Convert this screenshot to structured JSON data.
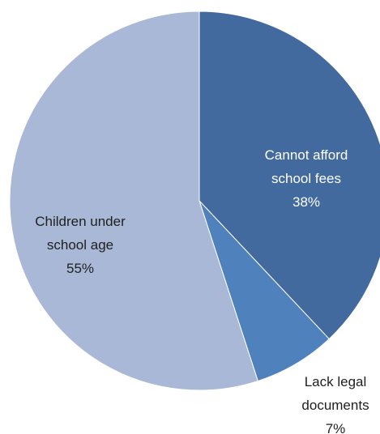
{
  "chart_data": {
    "type": "pie",
    "start_angle_deg": 0,
    "direction": "clockwise",
    "slices": [
      {
        "label_lines": [
          "Cannot afford",
          "school fees"
        ],
        "pct_text": "38%",
        "value": 38,
        "color": "#426A9E",
        "label_color": "#FFFFFF"
      },
      {
        "label_lines": [
          "Lack legal",
          "documents"
        ],
        "pct_text": "7%",
        "value": 7,
        "color": "#4F81BD",
        "label_color": "#1F1F1F"
      },
      {
        "label_lines": [
          "Children under",
          "school age"
        ],
        "pct_text": "55%",
        "value": 55,
        "color": "#A9B8D6",
        "label_color": "#1F1F1F"
      }
    ]
  }
}
